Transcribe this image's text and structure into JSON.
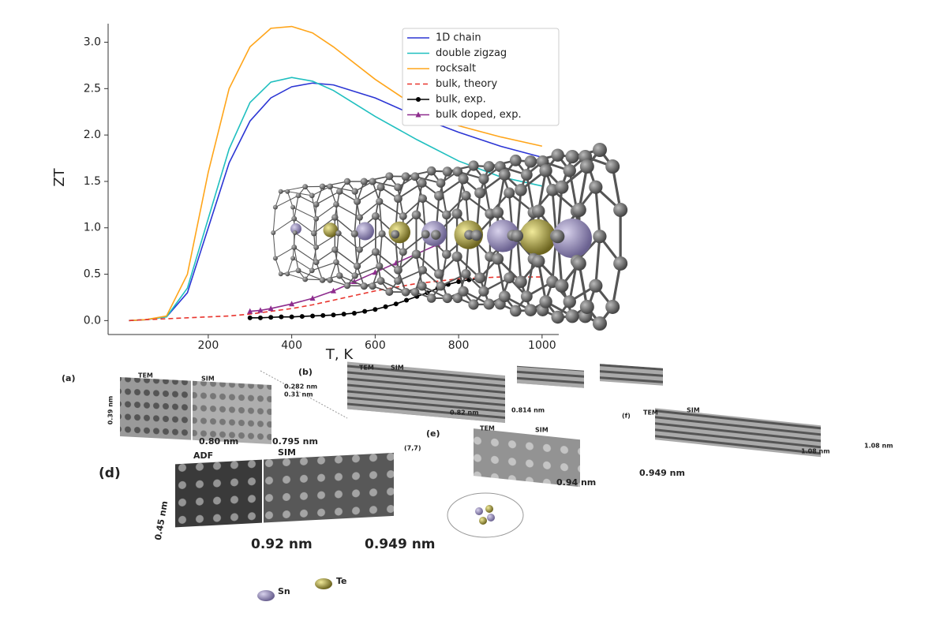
{
  "chart_data": {
    "type": "line",
    "ylabel": "ZT",
    "xlabel": "T, K",
    "xlim": [
      -40,
      1040
    ],
    "ylim": [
      -0.15,
      3.2
    ],
    "xticks": [
      200,
      400,
      600,
      800,
      1000
    ],
    "yticks": [
      {
        "value": 0,
        "label": "0.0"
      },
      {
        "value": 0.5,
        "label": "0.5"
      },
      {
        "value": 1,
        "label": "1.0"
      },
      {
        "value": 1.5,
        "label": "1.5"
      },
      {
        "value": 2,
        "label": "2.0"
      },
      {
        "value": 2.5,
        "label": "2.5"
      },
      {
        "value": 3,
        "label": "3.0"
      }
    ],
    "legend": "upper right",
    "series": [
      {
        "name": "1D chain",
        "color": "#2b35d4",
        "linestyle": "solid",
        "marker": "none",
        "x": [
          10,
          50,
          100,
          150,
          200,
          250,
          300,
          350,
          400,
          450,
          500,
          600,
          700,
          800,
          900,
          1000
        ],
        "values": [
          0,
          0.01,
          0.04,
          0.3,
          1.0,
          1.7,
          2.15,
          2.4,
          2.52,
          2.56,
          2.54,
          2.4,
          2.2,
          2.03,
          1.88,
          1.76
        ]
      },
      {
        "name": "double zigzag",
        "color": "#1fbfbf",
        "linestyle": "solid",
        "marker": "none",
        "x": [
          10,
          50,
          100,
          150,
          200,
          250,
          300,
          350,
          400,
          450,
          500,
          600,
          700,
          800,
          900,
          1000
        ],
        "values": [
          0,
          0.01,
          0.04,
          0.35,
          1.1,
          1.85,
          2.35,
          2.57,
          2.62,
          2.58,
          2.48,
          2.2,
          1.95,
          1.72,
          1.55,
          1.45
        ]
      },
      {
        "name": "rocksalt",
        "color": "#ffa51a",
        "linestyle": "solid",
        "marker": "none",
        "x": [
          10,
          50,
          100,
          150,
          200,
          250,
          300,
          350,
          400,
          450,
          500,
          600,
          700,
          800,
          900,
          1000
        ],
        "values": [
          0,
          0.01,
          0.05,
          0.5,
          1.6,
          2.5,
          2.95,
          3.15,
          3.17,
          3.1,
          2.95,
          2.6,
          2.3,
          2.1,
          1.98,
          1.88
        ]
      },
      {
        "name": "bulk, theory",
        "color": "#e8352e",
        "linestyle": "dashed",
        "marker": "none",
        "x": [
          10,
          50,
          100,
          150,
          200,
          250,
          300,
          350,
          400,
          450,
          500,
          600,
          700,
          800,
          900,
          1000
        ],
        "values": [
          0,
          0.01,
          0.02,
          0.03,
          0.04,
          0.05,
          0.07,
          0.1,
          0.13,
          0.17,
          0.22,
          0.32,
          0.4,
          0.45,
          0.47,
          0.47
        ]
      },
      {
        "name": "bulk, exp.",
        "color": "#000000",
        "linestyle": "solid",
        "marker": "circle",
        "x": [
          300,
          325,
          350,
          375,
          400,
          425,
          450,
          475,
          500,
          525,
          550,
          575,
          600,
          625,
          650,
          675,
          700,
          725,
          750,
          775,
          800,
          825,
          850
        ],
        "values": [
          0.03,
          0.03,
          0.035,
          0.04,
          0.04,
          0.045,
          0.05,
          0.055,
          0.06,
          0.07,
          0.08,
          0.1,
          0.12,
          0.15,
          0.18,
          0.22,
          0.26,
          0.3,
          0.35,
          0.39,
          0.42,
          0.44,
          0.45
        ]
      },
      {
        "name": "bulk doped, exp.",
        "color": "#8e2d8e",
        "linestyle": "solid",
        "marker": "triangle",
        "x": [
          300,
          325,
          350,
          400,
          450,
          500,
          550,
          600,
          650,
          700,
          750
        ],
        "values": [
          0.1,
          0.11,
          0.13,
          0.18,
          0.24,
          0.32,
          0.42,
          0.52,
          0.62,
          0.72,
          0.82
        ]
      }
    ]
  },
  "panels": {
    "a": {
      "label": "(a)",
      "tem": "TEM",
      "sim": "SIM",
      "d1": "0.39 nm",
      "d2": "0.80 nm",
      "d3": "0.795 nm"
    },
    "b": {
      "label": "(b)",
      "tem": "TEM",
      "sim": "SIM",
      "d1": "0.282 nm",
      "d2": "0.31 nm",
      "d3": "0.82 nm",
      "d4": "0.814 nm"
    },
    "d": {
      "label": "(d)",
      "adf": "ADF",
      "sim": "SIM",
      "index": "(7,7)",
      "d1": "0.45 nm",
      "d2": "0.92 nm",
      "d3": "0.949 nm"
    },
    "e": {
      "label": "(e)",
      "tem": "TEM",
      "sim": "SIM",
      "d1": "0.94 nm",
      "d2": "0.949 nm"
    },
    "f": {
      "label": "(f)",
      "tem": "TEM",
      "sim": "SIM",
      "d1": "1.08 nm"
    },
    "atoms": {
      "sn": "Sn",
      "te": "Te"
    }
  }
}
